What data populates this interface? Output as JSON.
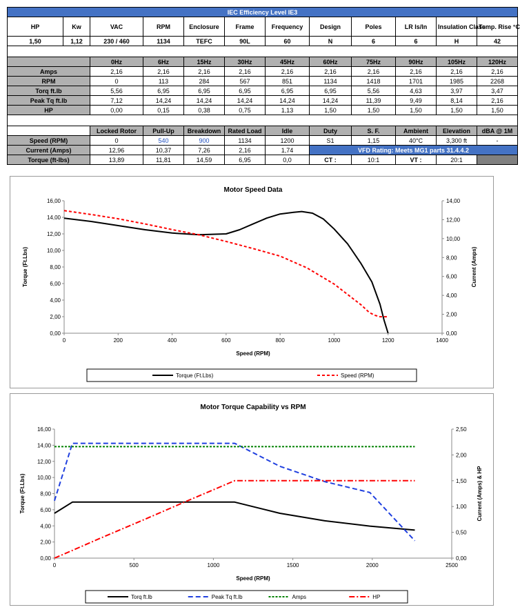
{
  "spec": {
    "banner": "IEC Efficiency Level IE3",
    "headers": [
      "HP",
      "Kw",
      "VAC",
      "RPM",
      "Enclosure",
      "Frame",
      "Frequency",
      "Design",
      "Poles",
      "LR Is/In",
      "Insulation Class",
      "Temp. Rise °C"
    ],
    "values": [
      "1,50",
      "1,12",
      "230 / 460",
      "1134",
      "TEFC",
      "90L",
      "60",
      "N",
      "6",
      "6",
      "H",
      "42"
    ]
  },
  "freq_table": {
    "headers": [
      "0Hz",
      "6Hz",
      "15Hz",
      "30Hz",
      "45Hz",
      "60Hz",
      "75Hz",
      "90Hz",
      "105Hz",
      "120Hz"
    ],
    "rows": [
      {
        "label": "Amps",
        "values": [
          "2,16",
          "2,16",
          "2,16",
          "2,16",
          "2,16",
          "2,16",
          "2,16",
          "2,16",
          "2,16",
          "2,16"
        ]
      },
      {
        "label": "RPM",
        "values": [
          "0",
          "113",
          "284",
          "567",
          "851",
          "1134",
          "1418",
          "1701",
          "1985",
          "2268"
        ]
      },
      {
        "label": "Torq ft.lb",
        "values": [
          "5,56",
          "6,95",
          "6,95",
          "6,95",
          "6,95",
          "6,95",
          "5,56",
          "4,63",
          "3,97",
          "3,47"
        ]
      },
      {
        "label": "Peak Tq ft.lb",
        "values": [
          "7,12",
          "14,24",
          "14,24",
          "14,24",
          "14,24",
          "14,24",
          "11,39",
          "9,49",
          "8,14",
          "2,16"
        ]
      },
      {
        "label": "HP",
        "values": [
          "0,00",
          "0,15",
          "0,38",
          "0,75",
          "1,13",
          "1,50",
          "1,50",
          "1,50",
          "1,50",
          "1,50"
        ]
      }
    ]
  },
  "perf_table": {
    "headers": [
      "Locked Rotor",
      "Pull-Up",
      "Breakdown",
      "Rated Load",
      "Idle",
      "Duty",
      "S. F.",
      "Ambient",
      "Elevation",
      "dBA @ 1M"
    ],
    "speed": {
      "label": "Speed (RPM)",
      "values": [
        "0",
        "540",
        "900",
        "1134",
        "1200"
      ],
      "extra": [
        "S1",
        "1,15",
        "40°C",
        "3,300 ft",
        "-"
      ]
    },
    "current": {
      "label": "Current (Amps)",
      "values": [
        "12,96",
        "10,37",
        "7,26",
        "2,16",
        "1,74"
      ],
      "vfd": "VFD Rating: Meets MG1 parts 31.4.4.2"
    },
    "torque": {
      "label": "Torque (ft-lbs)",
      "values": [
        "13,89",
        "11,81",
        "14,59",
        "6,95",
        "0,0"
      ],
      "ct_label": "CT :",
      "ct_value": "10:1",
      "vt_label": "VT :",
      "vt_value": "20:1"
    }
  },
  "chart_data": [
    {
      "type": "line",
      "title": "Motor Speed Data",
      "xlabel": "Speed (RPM)",
      "ylabel": "Torque (Ft.Lbs)",
      "y2label": "Current (Amps)",
      "xlim": [
        0,
        1400
      ],
      "ylim": [
        0,
        16
      ],
      "y2lim": [
        0,
        14
      ],
      "xticks": [
        "0",
        "200",
        "400",
        "600",
        "800",
        "1000",
        "1200",
        "1400"
      ],
      "yticks": [
        "0,00",
        "2,00",
        "4,00",
        "6,00",
        "8,00",
        "10,00",
        "12,00",
        "14,00",
        "16,00"
      ],
      "y2ticks": [
        "0,00",
        "2,00",
        "4,00",
        "6,00",
        "8,00",
        "10,00",
        "12,00",
        "14,00"
      ],
      "series": [
        {
          "name": "Torque (Ft.Lbs)",
          "axis": "left",
          "color": "#000000",
          "dash": "",
          "x": [
            0,
            100,
            200,
            300,
            400,
            500,
            600,
            650,
            700,
            750,
            800,
            850,
            880,
            920,
            960,
            1000,
            1050,
            1100,
            1140,
            1170,
            1185,
            1200
          ],
          "y": [
            13.9,
            13.5,
            13.0,
            12.5,
            12.1,
            11.9,
            12.0,
            12.5,
            13.2,
            13.9,
            14.4,
            14.6,
            14.7,
            14.5,
            13.8,
            12.6,
            10.8,
            8.4,
            6.2,
            3.5,
            1.6,
            0.0
          ]
        },
        {
          "name": "Speed (RPM)",
          "axis": "right",
          "color": "#ff0000",
          "dash": "4,3",
          "x": [
            0,
            100,
            200,
            300,
            400,
            500,
            600,
            700,
            800,
            900,
            1000,
            1050,
            1100,
            1130,
            1150,
            1170,
            1200
          ],
          "y": [
            12.96,
            12.55,
            12.1,
            11.55,
            10.95,
            10.4,
            9.7,
            8.95,
            8.15,
            6.9,
            5.2,
            4.1,
            3.0,
            2.2,
            1.9,
            1.74,
            1.74
          ]
        }
      ],
      "legend": "bottom"
    },
    {
      "type": "line",
      "title": "Motor Torque Capability vs RPM",
      "xlabel": "Speed (RPM)",
      "ylabel": "Torque (Ft.Lbs)",
      "y2label": "Current (Amps) & HP",
      "xlim": [
        0,
        2500
      ],
      "ylim": [
        0,
        16
      ],
      "y2lim": [
        0,
        2.5
      ],
      "xticks": [
        "0",
        "500",
        "1000",
        "1500",
        "2000",
        "2500"
      ],
      "yticks": [
        "0,00",
        "2,00",
        "4,00",
        "6,00",
        "8,00",
        "10,00",
        "12,00",
        "14,00",
        "16,00"
      ],
      "y2ticks": [
        "0,00",
        "0,50",
        "1,00",
        "1,50",
        "2,00",
        "2,50"
      ],
      "series": [
        {
          "name": "Torq ft.lb",
          "axis": "left",
          "color": "#000000",
          "dash": "",
          "x": [
            0,
            113,
            284,
            567,
            851,
            1134,
            1418,
            1701,
            1985,
            2268
          ],
          "y": [
            5.56,
            6.95,
            6.95,
            6.95,
            6.95,
            6.95,
            5.56,
            4.63,
            3.97,
            3.47
          ]
        },
        {
          "name": "Peak Tq ft.lb",
          "axis": "left",
          "color": "#1f3fdf",
          "dash": "7,4",
          "x": [
            0,
            113,
            284,
            567,
            851,
            1134,
            1418,
            1701,
            1985,
            2268
          ],
          "y": [
            7.12,
            14.24,
            14.24,
            14.24,
            14.24,
            14.24,
            11.39,
            9.49,
            8.14,
            2.16
          ]
        },
        {
          "name": "Amps",
          "axis": "right",
          "color": "#008000",
          "dash": "3,2",
          "x": [
            0,
            113,
            284,
            567,
            851,
            1134,
            1418,
            1701,
            1985,
            2268
          ],
          "y": [
            2.16,
            2.16,
            2.16,
            2.16,
            2.16,
            2.16,
            2.16,
            2.16,
            2.16,
            2.16
          ]
        },
        {
          "name": "HP",
          "axis": "right",
          "color": "#ff0000",
          "dash": "8,3,2,3",
          "x": [
            0,
            113,
            284,
            567,
            851,
            1134,
            1418,
            1701,
            1985,
            2268
          ],
          "y": [
            0.0,
            0.15,
            0.38,
            0.75,
            1.13,
            1.5,
            1.5,
            1.5,
            1.5,
            1.5
          ]
        }
      ],
      "legend": "bottom"
    }
  ]
}
